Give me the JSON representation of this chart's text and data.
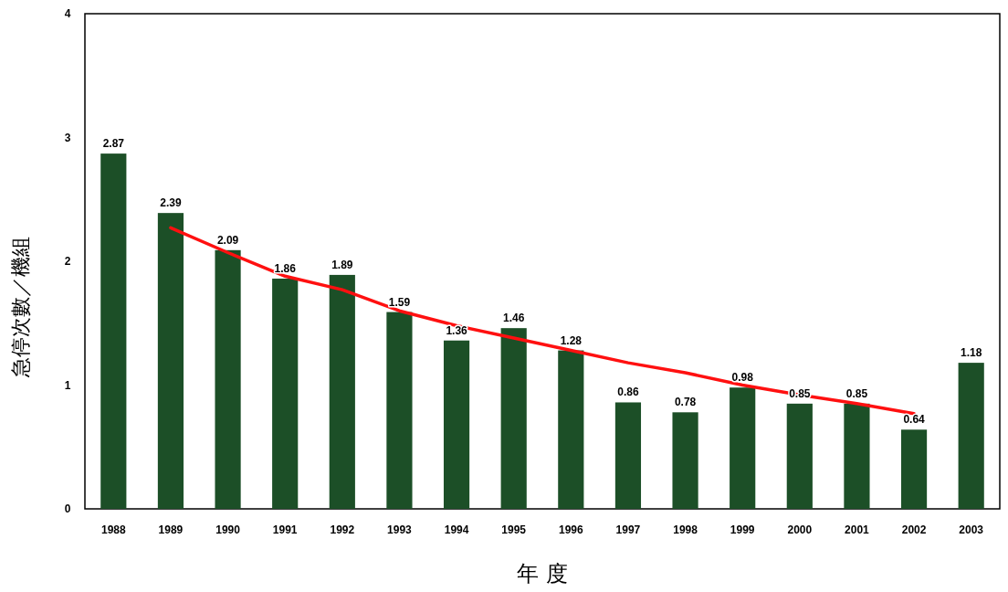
{
  "chart_data": {
    "type": "bar",
    "xlabel": "年 度",
    "ylabel": "急停次數／機組",
    "categories": [
      "1988",
      "1989",
      "1990",
      "1991",
      "1992",
      "1993",
      "1994",
      "1995",
      "1996",
      "1997",
      "1998",
      "1999",
      "2000",
      "2001",
      "2002",
      "2003"
    ],
    "series": [
      {
        "color": "#1c4f27",
        "values": [
          2.87,
          2.39,
          2.09,
          1.86,
          1.89,
          1.59,
          1.36,
          1.46,
          1.28,
          0.86,
          0.78,
          0.98,
          0.85,
          0.85,
          0.64,
          1.18
        ],
        "value_labels": [
          "2.87",
          "2.39",
          "2.09",
          "1.86",
          "1.89",
          "1.59",
          "1.36",
          "1.46",
          "1.28",
          "0.86",
          "0.78",
          "0.98",
          "0.85",
          "0.85",
          "0.64",
          "1.18"
        ]
      },
      {
        "type": "line",
        "color": "#ff1010",
        "values": [
          null,
          2.27,
          2.07,
          1.88,
          1.77,
          1.6,
          1.48,
          1.38,
          1.28,
          1.18,
          1.1,
          1.0,
          0.92,
          0.85,
          0.77,
          null
        ]
      }
    ],
    "ylim": [
      0,
      4
    ],
    "yticks": [
      0,
      1,
      2,
      3,
      4
    ]
  }
}
